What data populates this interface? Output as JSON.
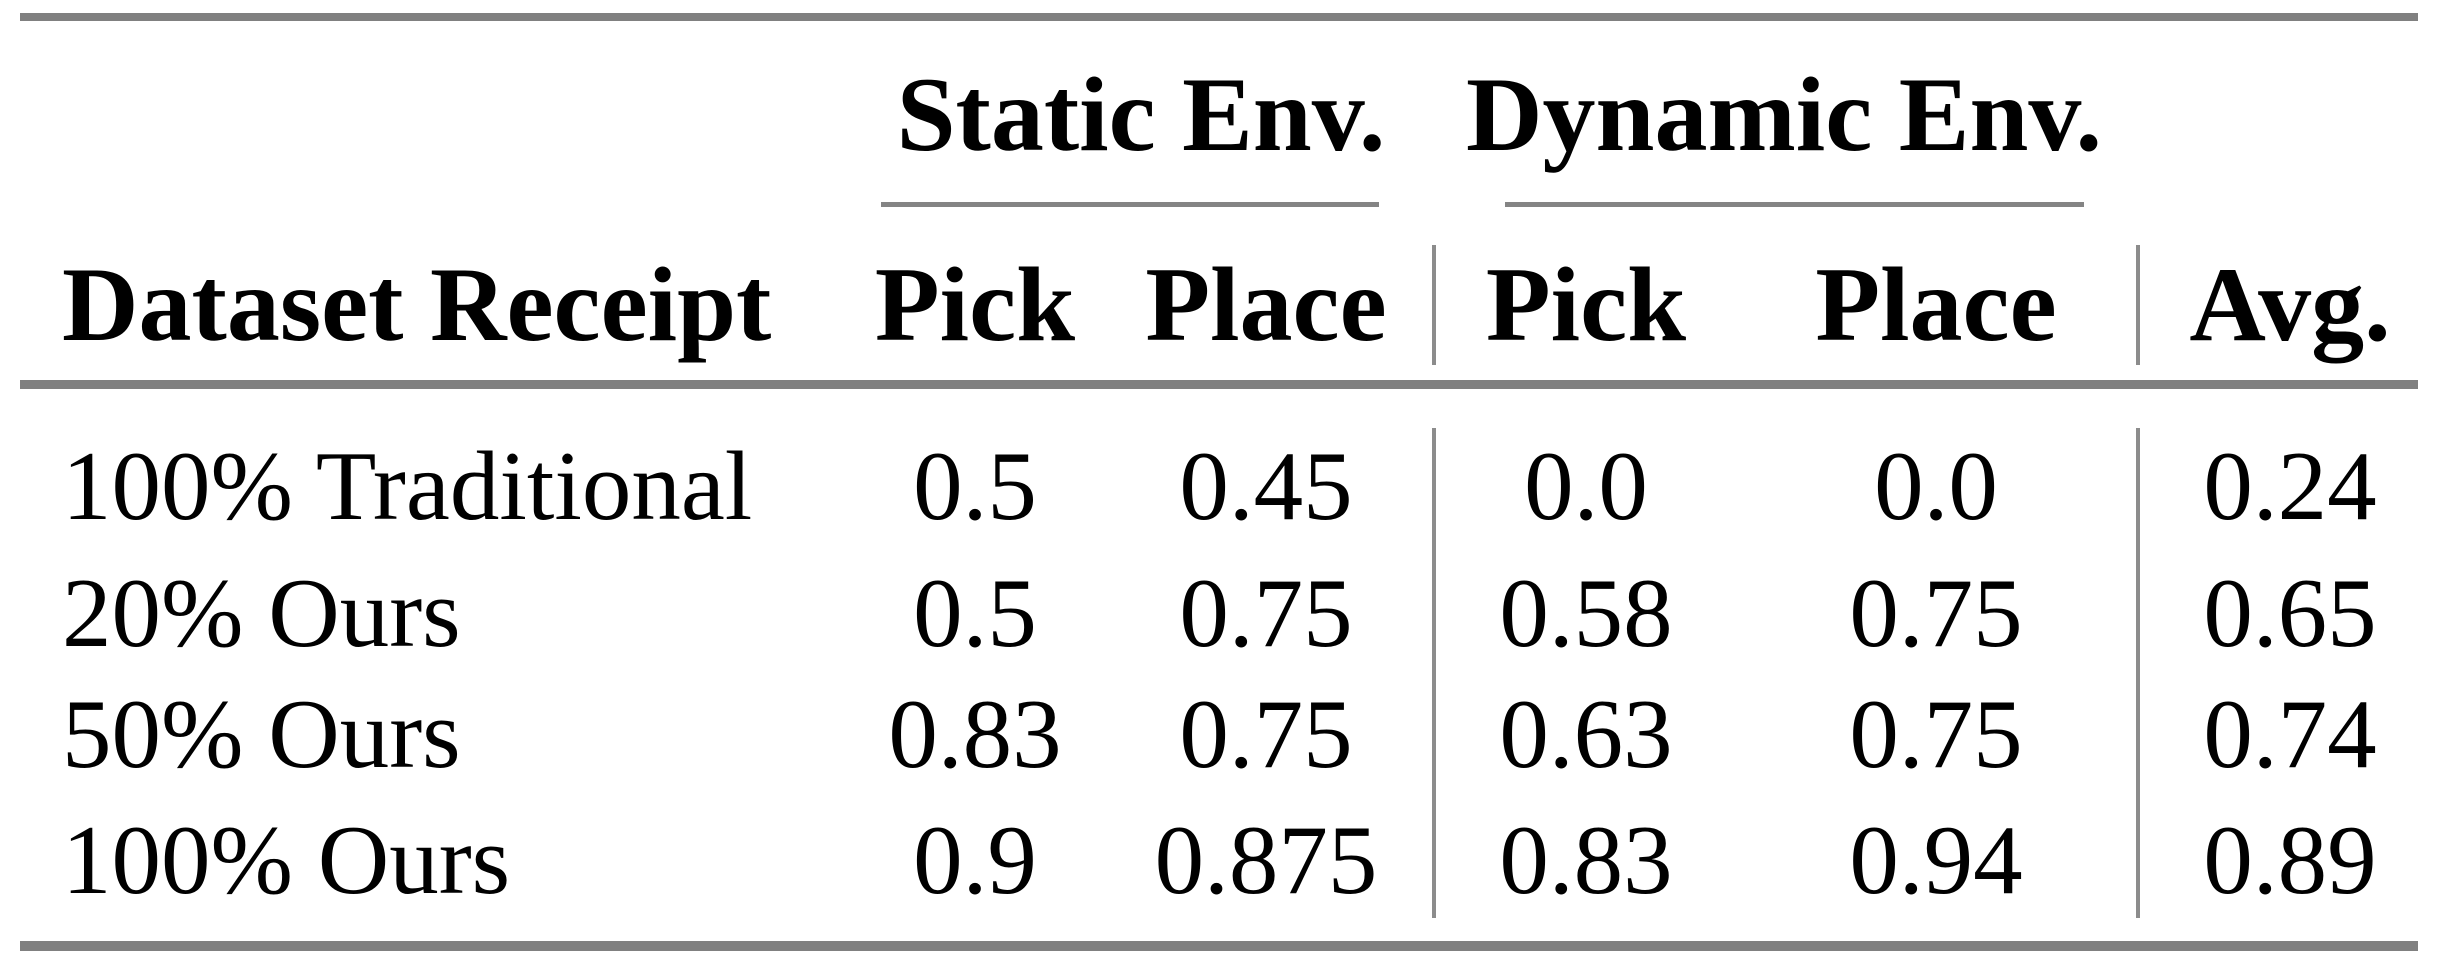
{
  "table": {
    "groups": [
      {
        "label": "Static Env."
      },
      {
        "label": "Dynamic Env."
      }
    ],
    "columns": [
      "Dataset Receipt",
      "Pick",
      "Place",
      "Pick",
      "Place",
      "Avg."
    ],
    "rows": [
      [
        "100% Traditional",
        "0.5",
        "0.45",
        "0.0",
        "0.0",
        "0.24"
      ],
      [
        "20% Ours",
        "0.5",
        "0.75",
        "0.58",
        "0.75",
        "0.65"
      ],
      [
        "50% Ours",
        "0.83",
        "0.75",
        "0.63",
        "0.75",
        "0.74"
      ],
      [
        "100% Ours",
        "0.9",
        "0.875",
        "0.83",
        "0.94",
        "0.89"
      ]
    ],
    "colors": {
      "rule_gray": "#808080",
      "text": "#000000",
      "background": "#ffffff"
    }
  }
}
